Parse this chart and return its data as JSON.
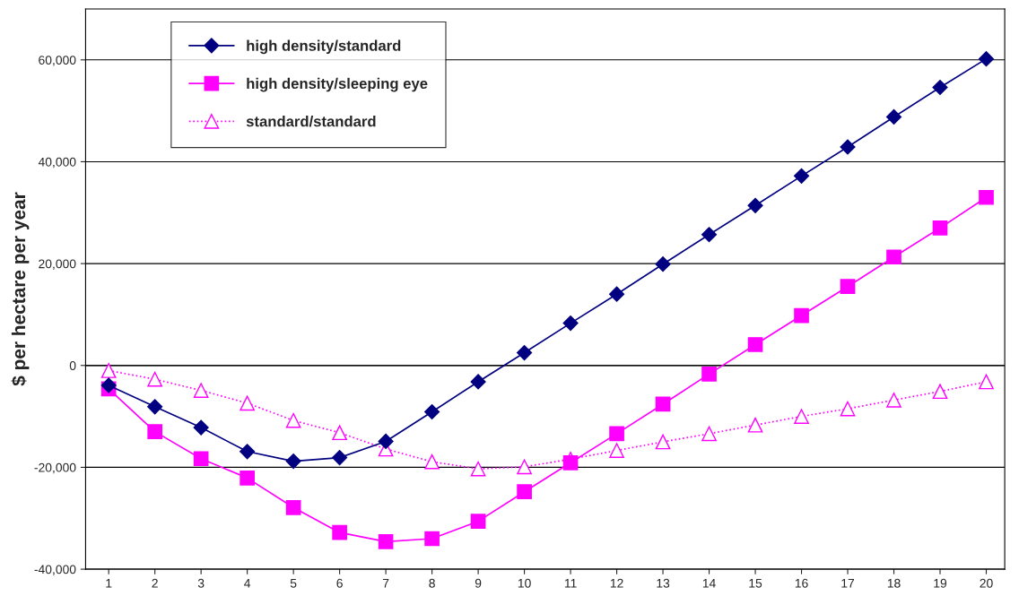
{
  "chart_data": {
    "type": "line",
    "ylabel": "$ per hectare per year",
    "categories": [
      "1",
      "2",
      "3",
      "4",
      "5",
      "6",
      "7",
      "8",
      "9",
      "10",
      "11",
      "12",
      "13",
      "14",
      "15",
      "16",
      "17",
      "18",
      "19",
      "20"
    ],
    "series": [
      {
        "name": "high density/standard",
        "color": "#000080",
        "marker": "diamond",
        "line_style": "solid",
        "values": [
          -3900,
          -8100,
          -12200,
          -16900,
          -18800,
          -18100,
          -14900,
          -9100,
          -3200,
          2500,
          8300,
          14000,
          19900,
          25700,
          31400,
          37200,
          42900,
          48800,
          54600,
          60200
        ]
      },
      {
        "name": "high density/sleeping eye",
        "color": "#ff00ff",
        "marker": "square",
        "line_style": "solid",
        "values": [
          -4600,
          -13000,
          -18300,
          -22100,
          -27900,
          -32800,
          -34600,
          -34000,
          -30600,
          -24800,
          -19100,
          -13400,
          -7600,
          -1700,
          4100,
          9800,
          15500,
          21300,
          27000,
          33000
        ]
      },
      {
        "name": "standard/standard",
        "color": "#ff00ff",
        "marker": "triangle",
        "line_style": "dotted",
        "values": [
          -1000,
          -2700,
          -4900,
          -7400,
          -10800,
          -13200,
          -16400,
          -18900,
          -20300,
          -19900,
          -18400,
          -16700,
          -15000,
          -13400,
          -11700,
          -10000,
          -8500,
          -6800,
          -5100,
          -3200
        ]
      }
    ],
    "ylim": [
      -40000,
      70000
    ],
    "yticks": [
      {
        "value": -40000,
        "label": "-40,000"
      },
      {
        "value": -20000,
        "label": "-20,000"
      },
      {
        "value": 0,
        "label": "0"
      },
      {
        "value": 20000,
        "label": "20,000"
      },
      {
        "value": 40000,
        "label": "40,000"
      },
      {
        "value": 60000,
        "label": "60,000"
      }
    ],
    "grid": "y",
    "legend": "top left"
  }
}
